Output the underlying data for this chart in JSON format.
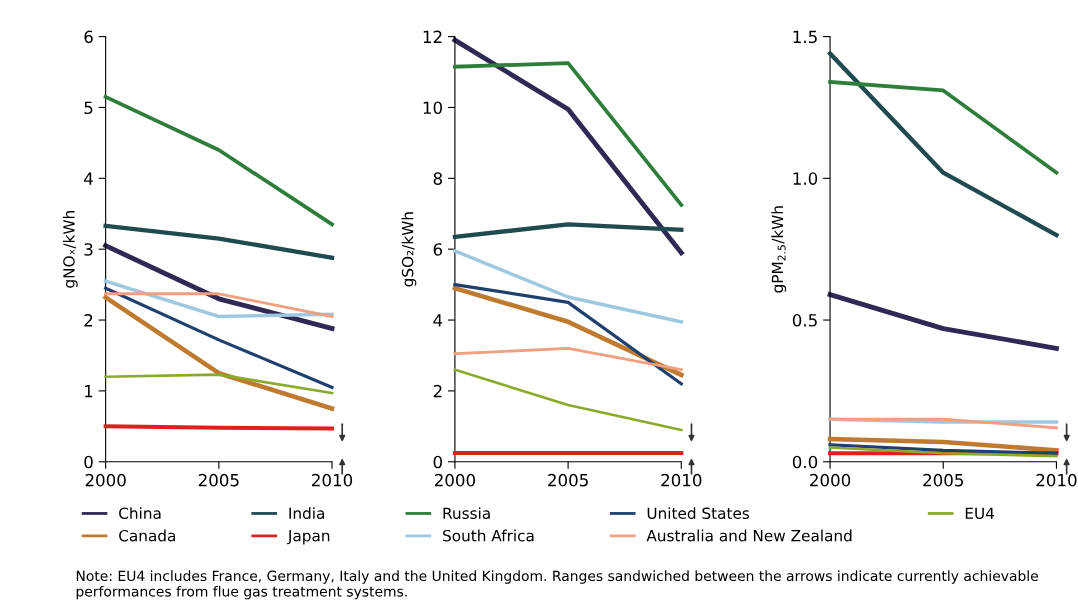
{
  "chart_data": [
    {
      "type": "line",
      "ylabel": "gNOₓ/kWh",
      "x": [
        2000,
        2005,
        2010
      ],
      "xlim": [
        2000,
        2010
      ],
      "xticks": [
        2000,
        2005,
        2010
      ],
      "ylim": [
        0,
        6
      ],
      "yticks": [
        0,
        1,
        2,
        3,
        4,
        5,
        6
      ],
      "legend": "bottom",
      "series": [
        {
          "name": "China",
          "color": "#2e2a55",
          "values": [
            3.05,
            2.3,
            1.88
          ]
        },
        {
          "name": "Canada",
          "color": "#c07a30",
          "values": [
            2.32,
            1.25,
            0.75
          ]
        },
        {
          "name": "India",
          "color": "#1e4a50",
          "values": [
            3.33,
            3.15,
            2.88
          ]
        },
        {
          "name": "Japan",
          "color": "#e02020",
          "values": [
            0.5,
            0.48,
            0.47
          ]
        },
        {
          "name": "Russia",
          "color": "#2e7d3a",
          "values": [
            5.15,
            4.4,
            3.35
          ]
        },
        {
          "name": "South Africa",
          "color": "#9ec8e0",
          "values": [
            2.55,
            2.05,
            2.08
          ]
        },
        {
          "name": "United States",
          "color": "#1f3f6e",
          "values": [
            2.45,
            1.72,
            1.05
          ]
        },
        {
          "name": "Australia and New Zealand",
          "color": "#f0a080",
          "values": [
            2.37,
            2.37,
            2.05
          ]
        },
        {
          "name": "EU4",
          "color": "#8aaa2a",
          "values": [
            1.2,
            1.23,
            0.97
          ]
        }
      ],
      "annotations": [
        "Note: EU4 includes France, Germany, Italy and the United Kingdom. Ranges sandwiched between the arrows indicate currently achievable performances from flue gas treatment systems."
      ]
    },
    {
      "type": "line",
      "ylabel": "gSO₂/kWh",
      "x": [
        2000,
        2005,
        2010
      ],
      "xlim": [
        2000,
        2010
      ],
      "xticks": [
        2000,
        2005,
        2010
      ],
      "ylim": [
        0,
        12
      ],
      "yticks": [
        0,
        2,
        4,
        6,
        8,
        10,
        12
      ],
      "series": [
        {
          "color": "#2e2a55",
          "values": [
            11.9,
            9.95,
            5.9
          ]
        },
        {
          "color": "#c07a30",
          "values": [
            4.9,
            3.95,
            2.45
          ]
        },
        {
          "color": "#1e4a50",
          "values": [
            6.35,
            6.7,
            6.55
          ]
        },
        {
          "color": "#e02020",
          "values": [
            0.25,
            0.25,
            0.25
          ]
        },
        {
          "color": "#2e7d3a",
          "values": [
            11.15,
            11.25,
            7.25
          ]
        },
        {
          "color": "#9ec8e0",
          "values": [
            5.95,
            4.65,
            3.95
          ]
        },
        {
          "color": "#1f3f6e",
          "values": [
            5.0,
            4.5,
            2.2
          ]
        },
        {
          "color": "#f0a080",
          "values": [
            3.05,
            3.2,
            2.6
          ]
        },
        {
          "color": "#8aaa2a",
          "values": [
            2.6,
            1.6,
            0.9
          ]
        }
      ]
    },
    {
      "type": "line",
      "ylabel": "gPM$_{2.5}$/kWh",
      "x": [
        2000,
        2005,
        2010
      ],
      "xlim": [
        2000,
        2010
      ],
      "xticks": [
        2000,
        2005,
        2010
      ],
      "ylim": [
        0,
        1.5
      ],
      "yticks": [
        {
          "value": 0,
          "label": "0.0"
        },
        {
          "value": 0.5,
          "label": "0.5"
        },
        {
          "value": 1,
          "label": "1.0"
        },
        {
          "value": 1.5,
          "label": "1.5"
        }
      ],
      "series": [
        {
          "color": "#2e2a55",
          "values": [
            0.59,
            0.47,
            0.4
          ]
        },
        {
          "color": "#c07a30",
          "values": [
            0.08,
            0.07,
            0.04
          ]
        },
        {
          "color": "#1e4a50",
          "values": [
            1.44,
            1.02,
            0.8
          ]
        },
        {
          "color": "#e02020",
          "values": [
            0.03,
            0.03,
            0.03
          ]
        },
        {
          "color": "#2e7d3a",
          "values": [
            1.34,
            1.31,
            1.02
          ]
        },
        {
          "color": "#9ec8e0",
          "values": [
            0.15,
            0.14,
            0.14
          ]
        },
        {
          "color": "#1f3f6e",
          "values": [
            0.06,
            0.04,
            0.03
          ]
        },
        {
          "color": "#f0a080",
          "values": [
            0.15,
            0.15,
            0.12
          ]
        },
        {
          "color": "#8aaa2a",
          "values": [
            0.05,
            0.03,
            0.02
          ]
        }
      ]
    }
  ]
}
